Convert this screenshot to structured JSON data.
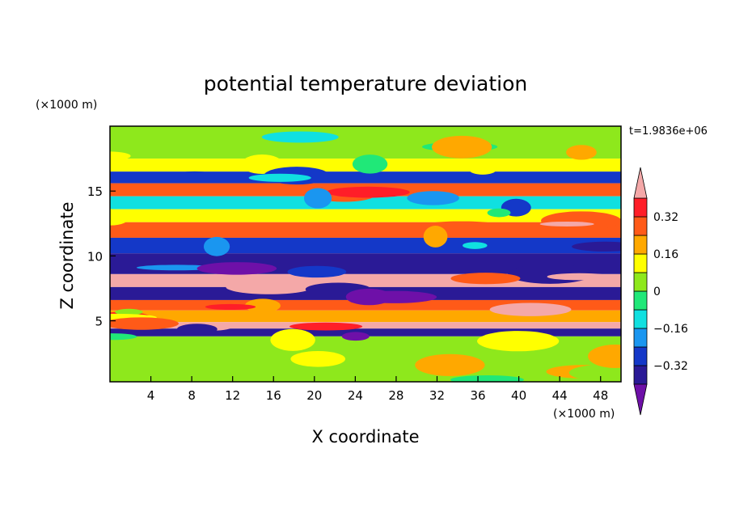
{
  "chart_data": {
    "type": "heatmap",
    "title": "potential temperature deviation",
    "xlabel": "X coordinate",
    "ylabel": "Z coordinate",
    "x_units": "(×1000 m)",
    "y_units": "(×1000 m)",
    "time_label": "t=1.9836e+06",
    "xlim": [
      0,
      50
    ],
    "ylim": [
      0.3,
      20
    ],
    "xticks": [
      4,
      8,
      12,
      16,
      20,
      24,
      28,
      32,
      36,
      40,
      44,
      48
    ],
    "yticks": [
      5,
      10,
      15
    ],
    "colorbar": {
      "levels": [
        -0.4,
        -0.32,
        -0.24,
        -0.16,
        -0.08,
        0,
        0.08,
        0.16,
        0.24,
        0.32,
        0.4
      ],
      "labels": [
        "0.32",
        "0.16",
        "0",
        "−0.16",
        "−0.32"
      ],
      "label_values": [
        0.32,
        0.16,
        0,
        -0.16,
        -0.32
      ],
      "colors": [
        "#6e10a8",
        "#2a1a96",
        "#1438c8",
        "#1a96f0",
        "#10e0e0",
        "#20e878",
        "#8ee81c",
        "#ffff00",
        "#ffa800",
        "#ff5a18",
        "#ff1e28",
        "#f4a8a8"
      ],
      "extend": "both"
    },
    "bands": [
      {
        "z": [
          17.5,
          20.0
        ],
        "value": 0.02
      },
      {
        "z": [
          16.5,
          17.5
        ],
        "value": 0.1
      },
      {
        "z": [
          15.6,
          16.5
        ],
        "value": -0.25
      },
      {
        "z": [
          14.6,
          15.6
        ],
        "value": 0.3
      },
      {
        "z": [
          13.6,
          14.6
        ],
        "value": -0.1
      },
      {
        "z": [
          12.6,
          13.6
        ],
        "value": 0.15
      },
      {
        "z": [
          11.4,
          12.6
        ],
        "value": 0.3
      },
      {
        "z": [
          10.2,
          11.4
        ],
        "value": -0.3
      },
      {
        "z": [
          8.6,
          10.2
        ],
        "value": -0.35
      },
      {
        "z": [
          7.6,
          8.6
        ],
        "value": 0.42
      },
      {
        "z": [
          6.6,
          7.6
        ],
        "value": -0.38
      },
      {
        "z": [
          5.8,
          6.6
        ],
        "value": 0.3
      },
      {
        "z": [
          4.9,
          5.8
        ],
        "value": 0.22
      },
      {
        "z": [
          4.4,
          4.9
        ],
        "value": 0.42
      },
      {
        "z": [
          3.8,
          4.4
        ],
        "value": -0.38
      },
      {
        "z": [
          0.3,
          3.8
        ],
        "value": 0.06
      }
    ]
  }
}
